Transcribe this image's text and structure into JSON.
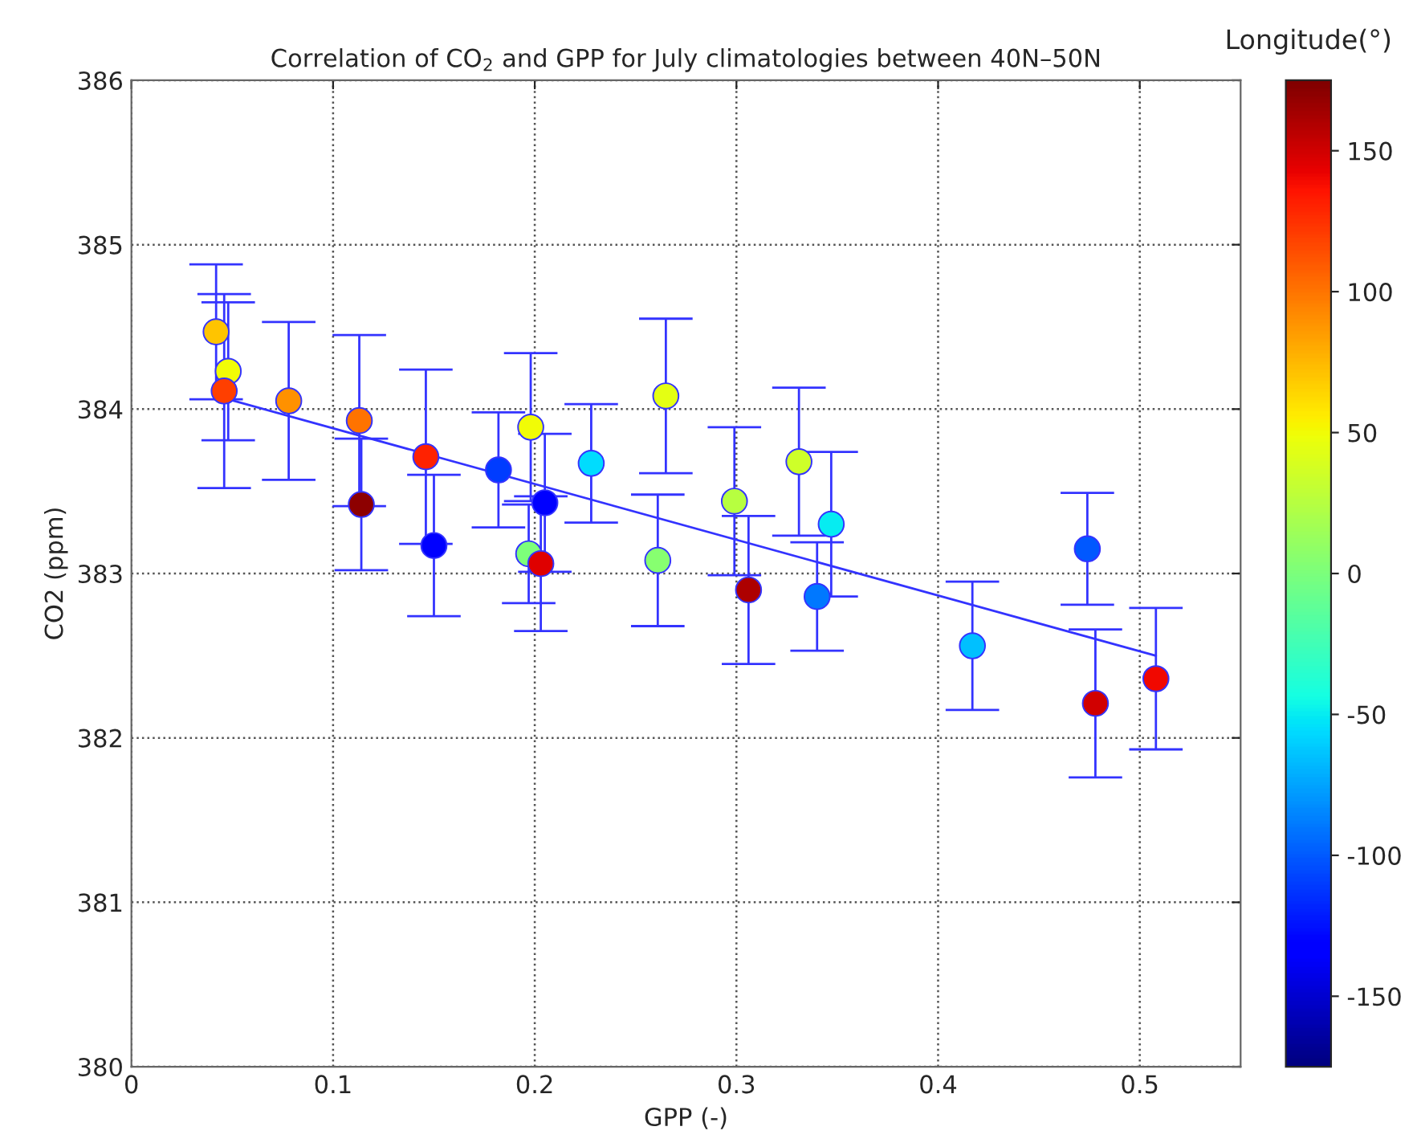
{
  "chart_data": {
    "type": "scatter",
    "title": "Correlation of CO$_{2}$ and GPP for July climatologies between 40N–50N",
    "xlabel": "GPP (-)",
    "ylabel": "CO2 (ppm)",
    "clabel": "Longitude(°)",
    "xlim": [
      0,
      0.55
    ],
    "xticks": [
      0,
      0.1,
      0.2,
      0.3,
      0.4,
      0.5
    ],
    "ylim": [
      380,
      386
    ],
    "yticks": [
      380,
      381,
      382,
      383,
      384,
      385,
      386
    ],
    "clim": [
      -175,
      175
    ],
    "cticks": [
      -150,
      -100,
      -50,
      0,
      50,
      100,
      150
    ],
    "grid": true,
    "series": [
      {
        "marker": "circle",
        "color": "#3333ff",
        "x": [
          0.042,
          0.048,
          0.046,
          0.078,
          0.113,
          0.114,
          0.146,
          0.15,
          0.182,
          0.198,
          0.197,
          0.203,
          0.205,
          0.228,
          0.265,
          0.261,
          0.299,
          0.306,
          0.331,
          0.347,
          0.34,
          0.417,
          0.474,
          0.478,
          0.508
        ],
        "values": [
          384.47,
          384.23,
          384.11,
          384.05,
          383.93,
          383.42,
          383.71,
          383.17,
          383.63,
          383.89,
          383.12,
          383.06,
          383.43,
          383.67,
          384.08,
          383.08,
          383.44,
          382.9,
          383.68,
          383.3,
          382.86,
          382.56,
          383.15,
          382.21,
          382.36
        ],
        "errors": [
          0.41,
          0.42,
          0.59,
          0.48,
          0.52,
          0.4,
          0.53,
          0.43,
          0.35,
          0.45,
          0.3,
          0.41,
          0.42,
          0.36,
          0.47,
          0.4,
          0.45,
          0.45,
          0.45,
          0.44,
          0.33,
          0.39,
          0.34,
          0.45,
          0.43
        ],
        "cvalues": [
          70,
          50,
          120,
          90,
          100,
          170,
          130,
          -130,
          -110,
          50,
          0,
          145,
          -130,
          -55,
          45,
          5,
          25,
          160,
          35,
          -50,
          -90,
          -65,
          -100,
          150,
          140
        ]
      },
      {
        "type": "line",
        "color": "#3333ff",
        "x": [
          0.042,
          0.508
        ],
        "values": [
          384.08,
          382.5
        ]
      }
    ]
  }
}
